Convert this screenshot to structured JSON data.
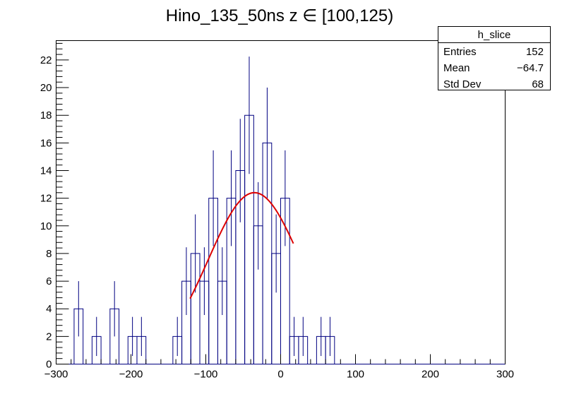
{
  "chart_data": {
    "type": "bar",
    "style": "step-histogram-with-error-bars",
    "title": "Hino_135_50ns z  ∈ [100,125)",
    "xlabel": "",
    "ylabel": "",
    "xlim": [
      -300,
      300
    ],
    "ylim": [
      0,
      23.4
    ],
    "grid": false,
    "bin_width": 12,
    "x_ticks": [
      -300,
      -200,
      -100,
      0,
      100,
      200,
      300
    ],
    "y_ticks": [
      0,
      2,
      4,
      6,
      8,
      10,
      12,
      14,
      16,
      18,
      20,
      22
    ],
    "bins": [
      {
        "x": -276,
        "value": 4
      },
      {
        "x": -252,
        "value": 2
      },
      {
        "x": -228,
        "value": 4
      },
      {
        "x": -204,
        "value": 2
      },
      {
        "x": -192,
        "value": 2
      },
      {
        "x": -144,
        "value": 2
      },
      {
        "x": -132,
        "value": 6
      },
      {
        "x": -120,
        "value": 8
      },
      {
        "x": -108,
        "value": 6
      },
      {
        "x": -96,
        "value": 12
      },
      {
        "x": -84,
        "value": 6
      },
      {
        "x": -72,
        "value": 12
      },
      {
        "x": -60,
        "value": 14
      },
      {
        "x": -48,
        "value": 18
      },
      {
        "x": -36,
        "value": 10
      },
      {
        "x": -24,
        "value": 16
      },
      {
        "x": -12,
        "value": 8
      },
      {
        "x": 0,
        "value": 12
      },
      {
        "x": 12,
        "value": 2
      },
      {
        "x": 24,
        "value": 2
      },
      {
        "x": 48,
        "value": 2
      },
      {
        "x": 60,
        "value": 2
      }
    ],
    "fit": {
      "type": "gaussian",
      "amplitude": 12.4,
      "mean": -35,
      "sigma": 62,
      "x_range": [
        -121,
        17
      ],
      "color": "#dd0000"
    },
    "histogram_color": "#000080",
    "stats_box": {
      "name": "h_slice",
      "rows": [
        {
          "label": "Entries",
          "value": "152"
        },
        {
          "label": "Mean",
          "value": "−64.7"
        },
        {
          "label": "Std Dev",
          "value": "68"
        }
      ]
    }
  }
}
